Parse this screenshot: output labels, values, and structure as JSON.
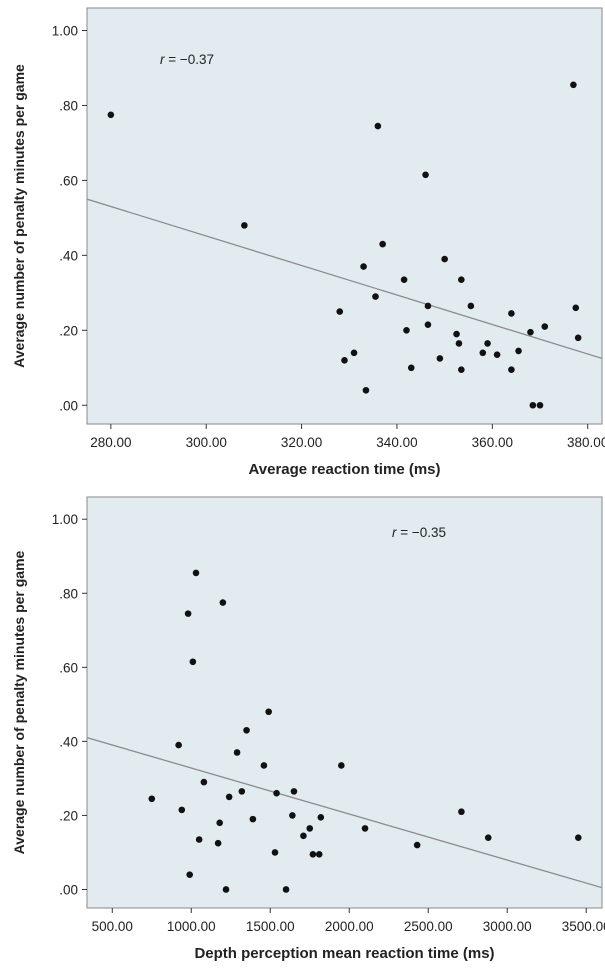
{
  "chart_data": [
    {
      "type": "scatter",
      "xlabel": "Average reaction time (ms)",
      "ylabel": "Average number of penalty minutes per game",
      "annotation": {
        "r_symbol": "r",
        "value": " = −0.37"
      },
      "xlim": [
        275,
        383
      ],
      "ylim": [
        -0.05,
        1.06
      ],
      "x_ticks": [
        280,
        300,
        320,
        340,
        360,
        380
      ],
      "x_tick_labels": [
        "280.00",
        "300.00",
        "320.00",
        "340.00",
        "360.00",
        "380.00"
      ],
      "y_ticks": [
        0,
        0.2,
        0.4,
        0.6,
        0.8,
        1.0
      ],
      "y_tick_labels": [
        ".00",
        ".20",
        ".40",
        ".60",
        ".80",
        "1.00"
      ],
      "fit_line": {
        "x": [
          275,
          383
        ],
        "y": [
          0.55,
          0.125
        ]
      },
      "x": [
        280,
        308,
        328,
        329,
        331,
        333,
        333.5,
        335.5,
        336,
        337,
        341.5,
        342,
        343,
        346,
        346.5,
        346.5,
        349,
        350,
        352.5,
        353,
        353.5,
        353.5,
        355.5,
        358,
        359,
        361,
        364,
        364,
        365.5,
        368,
        368.5,
        370,
        371,
        377,
        377.5,
        378
      ],
      "y": [
        0.775,
        0.48,
        0.25,
        0.12,
        0.14,
        0.37,
        0.04,
        0.29,
        0.745,
        0.43,
        0.335,
        0.2,
        0.1,
        0.615,
        0.265,
        0.215,
        0.125,
        0.39,
        0.19,
        0.165,
        0.335,
        0.095,
        0.265,
        0.14,
        0.165,
        0.135,
        0.245,
        0.095,
        0.145,
        0.195,
        0.0,
        0.0,
        0.21,
        0.855,
        0.26,
        0.18
      ]
    },
    {
      "type": "scatter",
      "xlabel": "Depth perception mean reaction time (ms)",
      "ylabel": "Average number of penalty minutes per game",
      "annotation": {
        "r_symbol": "r",
        "value": " = −0.35"
      },
      "xlim": [
        340,
        3600
      ],
      "ylim": [
        -0.05,
        1.06
      ],
      "x_ticks": [
        500,
        1000,
        1500,
        2000,
        2500,
        3000,
        3500
      ],
      "x_tick_labels": [
        "500.00",
        "1000.00",
        "1500.00",
        "2000.00",
        "2500.00",
        "3000.00",
        "3500.00"
      ],
      "y_ticks": [
        0,
        0.2,
        0.4,
        0.6,
        0.8,
        1.0
      ],
      "y_tick_labels": [
        ".00",
        ".20",
        ".40",
        ".60",
        ".80",
        "1.00"
      ],
      "fit_line": {
        "x": [
          340,
          3600
        ],
        "y": [
          0.41,
          0.005
        ]
      },
      "x": [
        750,
        920,
        940,
        980,
        990,
        1010,
        1030,
        1050,
        1080,
        1170,
        1180,
        1200,
        1220,
        1240,
        1290,
        1320,
        1350,
        1390,
        1460,
        1490,
        1530,
        1540,
        1600,
        1640,
        1650,
        1710,
        1750,
        1770,
        1810,
        1820,
        1950,
        2100,
        2430,
        2710,
        2880,
        3450
      ],
      "y": [
        0.245,
        0.39,
        0.215,
        0.745,
        0.04,
        0.615,
        0.855,
        0.135,
        0.29,
        0.125,
        0.18,
        0.775,
        0.0,
        0.25,
        0.37,
        0.265,
        0.43,
        0.19,
        0.335,
        0.48,
        0.1,
        0.26,
        0.0,
        0.2,
        0.265,
        0.145,
        0.165,
        0.095,
        0.095,
        0.195,
        0.335,
        0.165,
        0.12,
        0.21,
        0.14,
        0.14
      ]
    }
  ],
  "colors": {
    "plot_background": "#e2ebf0",
    "plot_border": "#8a8a8a",
    "marker": "#111111",
    "fit_line": "#8c8c8c"
  }
}
